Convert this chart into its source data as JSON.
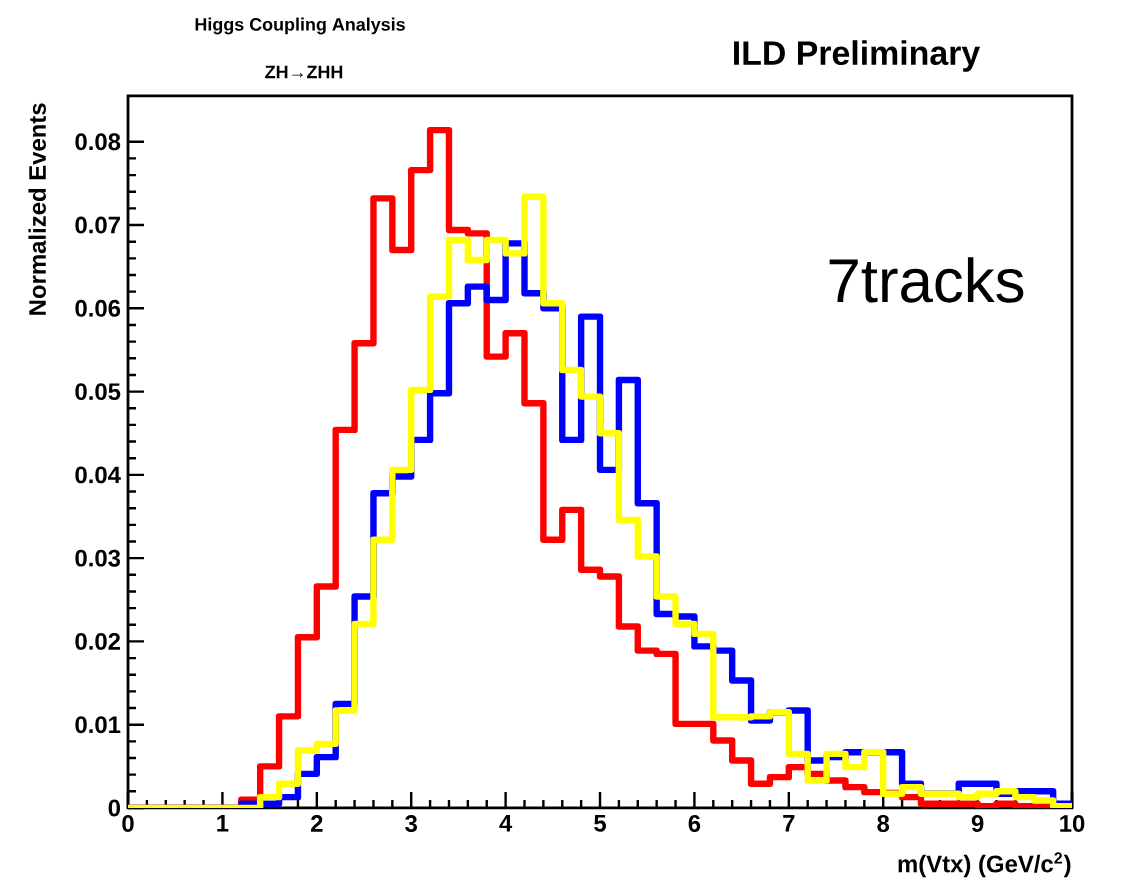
{
  "chart_data": {
    "type": "histogram",
    "title": "Higgs Coupling Analysis",
    "subtitle": "ZH→ZHH",
    "xlabel": "m(Vtx) (GeV/c$^{2}$)",
    "ylabel": "Normalized Events",
    "annotations": [
      "ILD Preliminary",
      "7tracks"
    ],
    "xlim": [
      0,
      10
    ],
    "ylim": [
      0,
      0.0855
    ],
    "xticks": [
      0,
      1,
      2,
      3,
      4,
      5,
      6,
      7,
      8,
      9,
      10
    ],
    "yticks": [
      0,
      0.01,
      0.02,
      0.03,
      0.04,
      0.05,
      0.06,
      0.07,
      0.08
    ],
    "bins": [
      0,
      0.2,
      0.4,
      0.6,
      0.8,
      1,
      1.2,
      1.4,
      1.6,
      1.8,
      2,
      2.2,
      2.4,
      2.6,
      2.8,
      3,
      3.2,
      3.4,
      3.6,
      3.8,
      4,
      4.2,
      4.4,
      4.6,
      4.8,
      5,
      5.2,
      5.4,
      5.6,
      5.8,
      6,
      6.2,
      6.4,
      6.6,
      6.8,
      7,
      7.2,
      7.4,
      7.6,
      7.8,
      8,
      8.2,
      8.4,
      8.6,
      8.8,
      9,
      9.2,
      9.4,
      9.6,
      9.8,
      10
    ],
    "series": [
      {
        "color": "#ff0000",
        "values": [
          0,
          0,
          0,
          0,
          0,
          0,
          0.001,
          0.005,
          0.011,
          0.0205,
          0.0266,
          0.0454,
          0.0558,
          0.0732,
          0.067,
          0.0766,
          0.0814,
          0.0694,
          0.069,
          0.0542,
          0.057,
          0.0486,
          0.0322,
          0.0358,
          0.0286,
          0.0278,
          0.0218,
          0.0189,
          0.0185,
          0.0101,
          0.0101,
          0.0081,
          0.0057,
          0.0029,
          0.0037,
          0.0049,
          0.0041,
          0.0033,
          0.0025,
          0.0019,
          0.0018,
          0.0013,
          0.0005,
          0.0005,
          0.0005,
          0.0002,
          0.0005,
          0.0002,
          0.0002,
          0
        ]
      },
      {
        "color": "#0000ff",
        "values": [
          0,
          0,
          0,
          0,
          0,
          0,
          0.0005,
          0.0005,
          0.0013,
          0.0041,
          0.0061,
          0.0125,
          0.0254,
          0.0378,
          0.0398,
          0.0442,
          0.0498,
          0.0606,
          0.0626,
          0.061,
          0.0678,
          0.0618,
          0.06,
          0.0442,
          0.059,
          0.0406,
          0.0514,
          0.0366,
          0.0233,
          0.023,
          0.0194,
          0.0189,
          0.0153,
          0.0105,
          0.0115,
          0.0117,
          0.0057,
          0.0061,
          0.0067,
          0.0067,
          0.0067,
          0.0029,
          0.0017,
          0.0017,
          0.0029,
          0.0029,
          0.0017,
          0.002,
          0.002,
          0.0005
        ]
      },
      {
        "color": "#ffff00",
        "values": [
          0,
          0,
          0,
          0,
          0,
          0,
          0,
          0.0013,
          0.0029,
          0.0069,
          0.0077,
          0.0117,
          0.0221,
          0.0322,
          0.0406,
          0.0502,
          0.0614,
          0.0682,
          0.0658,
          0.0682,
          0.0666,
          0.0734,
          0.0606,
          0.0526,
          0.0494,
          0.045,
          0.0346,
          0.0302,
          0.0254,
          0.0221,
          0.0209,
          0.0109,
          0.0109,
          0.011,
          0.0115,
          0.0065,
          0.0033,
          0.0065,
          0.0049,
          0.0067,
          0.0017,
          0.0025,
          0.0017,
          0.0017,
          0.0013,
          0.0017,
          0.002,
          0.0013,
          0.0009,
          0.0002
        ]
      }
    ]
  }
}
